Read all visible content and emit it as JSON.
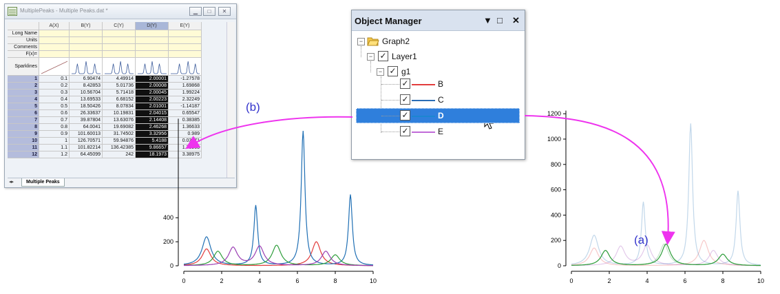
{
  "worksheet": {
    "title": "MultiplePeaks - Multiple Peaks.dat *",
    "columns": [
      "A(X)",
      "B(Y)",
      "C(Y)",
      "D(Y)",
      "E(Y)"
    ],
    "row_labels": [
      "Long Name",
      "Units",
      "Comments",
      "F(x)=",
      "Sparklines"
    ],
    "rows": [
      {
        "n": "1",
        "cells": [
          "0.1",
          "6.90474",
          "4.49914",
          "2.00001",
          "-1.27578"
        ]
      },
      {
        "n": "2",
        "cells": [
          "0.2",
          "8.42853",
          "5.01736",
          "2.00008",
          "1.69868"
        ]
      },
      {
        "n": "3",
        "cells": [
          "0.3",
          "10.56704",
          "5.71418",
          "2.00045",
          "1.99224"
        ]
      },
      {
        "n": "4",
        "cells": [
          "0.4",
          "13.69533",
          "6.68152",
          "2.00223",
          "2.32249"
        ]
      },
      {
        "n": "5",
        "cells": [
          "0.5",
          "18.50426",
          "8.07834",
          "2.01001",
          "-1.14187"
        ]
      },
      {
        "n": "6",
        "cells": [
          "0.6",
          "26.33637",
          "10.19831",
          "2.04015",
          "0.65547"
        ]
      },
      {
        "n": "7",
        "cells": [
          "0.7",
          "39.87804",
          "13.63076",
          "2.14408",
          "0.38385"
        ]
      },
      {
        "n": "8",
        "cells": [
          "0.8",
          "64.0041",
          "19.69082",
          "2.46268",
          "1.36633"
        ]
      },
      {
        "n": "9",
        "cells": [
          "0.9",
          "101.60013",
          "31.74502",
          "3.32956",
          "0.989"
        ]
      },
      {
        "n": "10",
        "cells": [
          "1",
          "126.70571",
          "59.94876",
          "5.4188",
          "0.03671"
        ]
      },
      {
        "n": "11",
        "cells": [
          "1.1",
          "101.82214",
          "136.42385",
          "9.86657",
          "1.73903"
        ]
      },
      {
        "n": "12",
        "cells": [
          "1.2",
          "64.45099",
          "242",
          "18.1973",
          "3.38975"
        ]
      }
    ],
    "sheet_tab": "Multiple Peaks"
  },
  "object_manager": {
    "title": "Object Manager",
    "graph": "Graph2",
    "layer": "Layer1",
    "group": "g1",
    "plots": [
      {
        "name": "B",
        "color": "#e23c3c",
        "selected": false
      },
      {
        "name": "C",
        "color": "#2a6db5",
        "selected": false
      },
      {
        "name": "D",
        "color": "#1c86d1",
        "selected": true
      },
      {
        "name": "E",
        "color": "#c06ad8",
        "selected": false
      }
    ],
    "header_buttons": [
      "▼",
      "□",
      "✕"
    ]
  },
  "annotations": {
    "b": "(b)",
    "a": "(a)"
  },
  "chart_data": [
    {
      "type": "line",
      "x_ticks": [
        "0",
        "2",
        "4",
        "6",
        "8",
        "10"
      ],
      "y_ticks": [
        "0",
        "200",
        "400"
      ],
      "xlim": [
        0,
        10
      ],
      "ylim": [
        0,
        1250
      ],
      "series": [
        {
          "color": "#e23c3c",
          "peaks": [
            [
              1.2,
              140
            ],
            [
              7.0,
              200
            ]
          ]
        },
        {
          "color": "#1f6fb4",
          "peaks": [
            [
              1.2,
              240
            ],
            [
              3.8,
              500
            ],
            [
              6.3,
              1120
            ],
            [
              8.8,
              590
            ]
          ]
        },
        {
          "color": "#2d9d3a",
          "peaks": [
            [
              1.8,
              120
            ],
            [
              4.9,
              170
            ],
            [
              8.0,
              90
            ]
          ]
        },
        {
          "color": "#9a3db3",
          "peaks": [
            [
              2.6,
              150
            ],
            [
              4.0,
              160
            ],
            [
              7.5,
              120
            ]
          ]
        }
      ]
    },
    {
      "type": "line",
      "x_ticks": [
        "0",
        "2",
        "4",
        "6",
        "8",
        "10"
      ],
      "y_ticks": [
        "0",
        "200",
        "400",
        "600",
        "800",
        "1000",
        "1200"
      ],
      "xlim": [
        0,
        10
      ],
      "ylim": [
        0,
        1250
      ],
      "series": [
        {
          "color": "#2d9d3a",
          "peaks": [
            [
              1.8,
              120
            ],
            [
              5.0,
              170
            ],
            [
              8.0,
              90
            ]
          ]
        }
      ]
    }
  ],
  "colors": {
    "arrow": "#ee33ee",
    "selection": "#2f7fdc"
  }
}
